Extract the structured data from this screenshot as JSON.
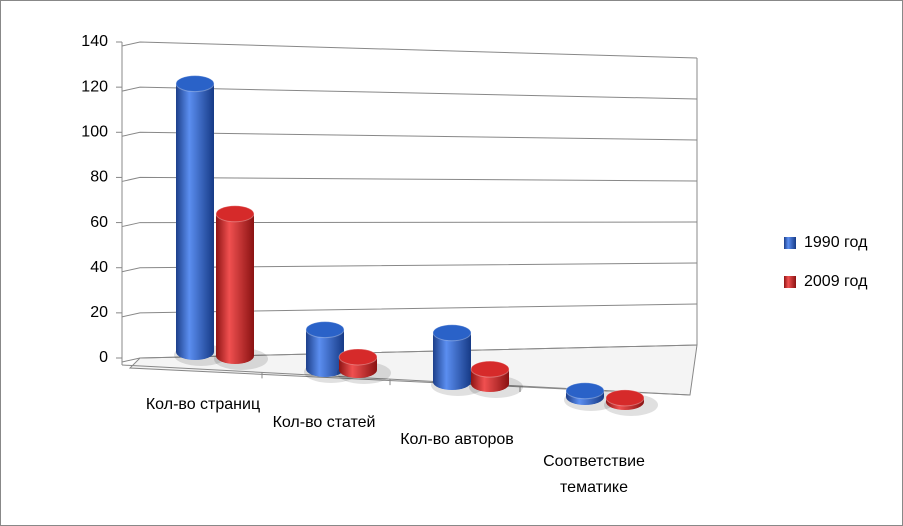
{
  "chart_data": {
    "type": "bar3d",
    "categories": [
      "Кол-во страниц",
      "Кол-во статей",
      "Кол-во авторов",
      "Соответствие тематике"
    ],
    "series": [
      {
        "name": "1990 год",
        "color": "#2a62c8",
        "values": [
          120,
          18,
          23,
          3
        ]
      },
      {
        "name": "2009 год",
        "color": "#d62a2a",
        "values": [
          64,
          6,
          7,
          2
        ]
      }
    ],
    "ylim": [
      0,
      140
    ],
    "yticks": [
      0,
      20,
      40,
      60,
      80,
      100,
      120,
      140
    ],
    "grid": true,
    "legend": "right"
  }
}
